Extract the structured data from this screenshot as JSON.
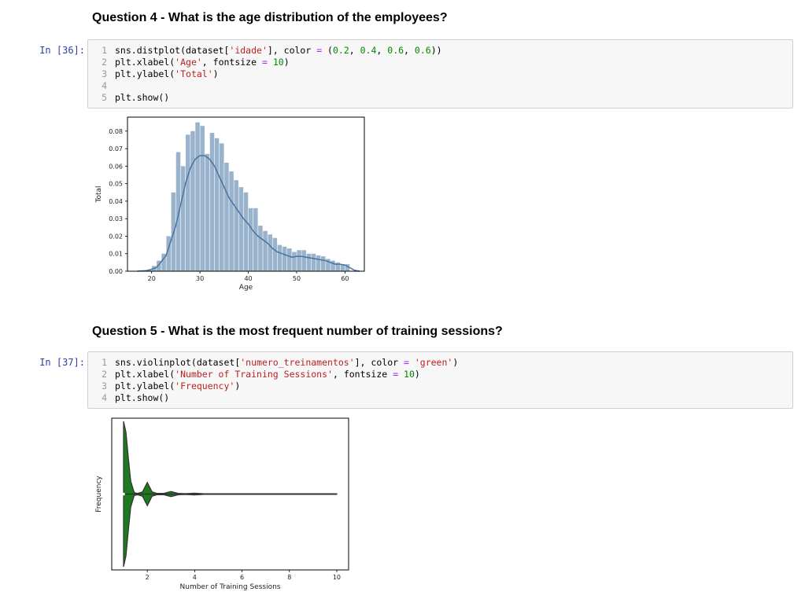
{
  "cells": [
    {
      "heading": "Question 4 - What is the age distribution of the employees?",
      "prompt": "In [36]:",
      "code_lines": [
        {
          "num": "1",
          "text": "sns.distplot(dataset['idade'], color = (0.2, 0.4, 0.6, 0.6))"
        },
        {
          "num": "2",
          "text": "plt.xlabel('Age', fontsize = 10)"
        },
        {
          "num": "3",
          "text": "plt.ylabel('Total')"
        },
        {
          "num": "4",
          "text": ""
        },
        {
          "num": "5",
          "text": "plt.show()"
        }
      ]
    },
    {
      "heading": "Question 5 - What is the most frequent number of training sessions?",
      "prompt": "In [37]:",
      "code_lines": [
        {
          "num": "1",
          "text": "sns.violinplot(dataset['numero_treinamentos'], color = 'green')"
        },
        {
          "num": "2",
          "text": "plt.xlabel('Number of Training Sessions', fontsize = 10)"
        },
        {
          "num": "3",
          "text": "plt.ylabel('Frequency')"
        },
        {
          "num": "4",
          "text": "plt.show()"
        }
      ]
    }
  ],
  "chart_data": [
    {
      "type": "bar",
      "xlabel": "Age",
      "ylabel": "Total",
      "xlim": [
        15,
        64
      ],
      "ylim": [
        0,
        0.088
      ],
      "xticks": [
        20,
        30,
        40,
        50,
        60
      ],
      "yticks": [
        "0.00",
        "0.01",
        "0.02",
        "0.03",
        "0.04",
        "0.05",
        "0.06",
        "0.07",
        "0.08"
      ],
      "bar_color": "#99b3cc",
      "line_color": "#4a73a0",
      "bin_width": 0.9,
      "bars": [
        {
          "x": 18.5,
          "y": 0.0005
        },
        {
          "x": 19.5,
          "y": 0.001
        },
        {
          "x": 20.5,
          "y": 0.003
        },
        {
          "x": 21.5,
          "y": 0.006
        },
        {
          "x": 22.5,
          "y": 0.01
        },
        {
          "x": 23.5,
          "y": 0.02
        },
        {
          "x": 24.5,
          "y": 0.045
        },
        {
          "x": 25.5,
          "y": 0.068
        },
        {
          "x": 26.5,
          "y": 0.06
        },
        {
          "x": 27.5,
          "y": 0.078
        },
        {
          "x": 28.5,
          "y": 0.08
        },
        {
          "x": 29.5,
          "y": 0.085
        },
        {
          "x": 30.5,
          "y": 0.083
        },
        {
          "x": 31.5,
          "y": 0.067
        },
        {
          "x": 32.5,
          "y": 0.079
        },
        {
          "x": 33.5,
          "y": 0.076
        },
        {
          "x": 34.5,
          "y": 0.073
        },
        {
          "x": 35.5,
          "y": 0.062
        },
        {
          "x": 36.5,
          "y": 0.057
        },
        {
          "x": 37.5,
          "y": 0.052
        },
        {
          "x": 38.5,
          "y": 0.048
        },
        {
          "x": 39.5,
          "y": 0.045
        },
        {
          "x": 40.5,
          "y": 0.036
        },
        {
          "x": 41.5,
          "y": 0.036
        },
        {
          "x": 42.5,
          "y": 0.026
        },
        {
          "x": 43.5,
          "y": 0.023
        },
        {
          "x": 44.5,
          "y": 0.021
        },
        {
          "x": 45.5,
          "y": 0.019
        },
        {
          "x": 46.5,
          "y": 0.015
        },
        {
          "x": 47.5,
          "y": 0.014
        },
        {
          "x": 48.5,
          "y": 0.013
        },
        {
          "x": 49.5,
          "y": 0.011
        },
        {
          "x": 50.5,
          "y": 0.012
        },
        {
          "x": 51.5,
          "y": 0.012
        },
        {
          "x": 52.5,
          "y": 0.01
        },
        {
          "x": 53.5,
          "y": 0.01
        },
        {
          "x": 54.5,
          "y": 0.009
        },
        {
          "x": 55.5,
          "y": 0.0085
        },
        {
          "x": 56.5,
          "y": 0.007
        },
        {
          "x": 57.5,
          "y": 0.006
        },
        {
          "x": 58.5,
          "y": 0.005
        },
        {
          "x": 59.5,
          "y": 0.004
        },
        {
          "x": 60.5,
          "y": 0.004
        }
      ],
      "kde": [
        [
          17,
          0.0
        ],
        [
          19,
          0.0003
        ],
        [
          21,
          0.002
        ],
        [
          23,
          0.009
        ],
        [
          25,
          0.026
        ],
        [
          26,
          0.038
        ],
        [
          27,
          0.05
        ],
        [
          28,
          0.059
        ],
        [
          29,
          0.064
        ],
        [
          30,
          0.066
        ],
        [
          31,
          0.066
        ],
        [
          32,
          0.064
        ],
        [
          33,
          0.06
        ],
        [
          34,
          0.054
        ],
        [
          35,
          0.048
        ],
        [
          36,
          0.042
        ],
        [
          37,
          0.038
        ],
        [
          38,
          0.034
        ],
        [
          39,
          0.03
        ],
        [
          40,
          0.027
        ],
        [
          41,
          0.023
        ],
        [
          42,
          0.02
        ],
        [
          43,
          0.018
        ],
        [
          44,
          0.016
        ],
        [
          45,
          0.013
        ],
        [
          46,
          0.011
        ],
        [
          47,
          0.01
        ],
        [
          48,
          0.009
        ],
        [
          49,
          0.008
        ],
        [
          50,
          0.0085
        ],
        [
          51,
          0.0085
        ],
        [
          52,
          0.008
        ],
        [
          53,
          0.0075
        ],
        [
          54,
          0.007
        ],
        [
          55,
          0.0065
        ],
        [
          56,
          0.006
        ],
        [
          57,
          0.005
        ],
        [
          58,
          0.004
        ],
        [
          59,
          0.004
        ],
        [
          60,
          0.0035
        ],
        [
          61,
          0.002
        ],
        [
          62,
          0.0005
        ],
        [
          63,
          0.0
        ]
      ]
    },
    {
      "type": "violin",
      "xlabel": "Number of Training Sessions",
      "ylabel": "Frequency",
      "xlim": [
        0.5,
        10.5
      ],
      "xticks": [
        2,
        4,
        6,
        8,
        10
      ],
      "fill_color": "#1e7a1e",
      "range": [
        1,
        10
      ],
      "median": 1,
      "density": [
        [
          1.0,
          1.0
        ],
        [
          1.1,
          0.85
        ],
        [
          1.2,
          0.5
        ],
        [
          1.3,
          0.18
        ],
        [
          1.45,
          0.02
        ],
        [
          1.6,
          0.01
        ],
        [
          1.8,
          0.03
        ],
        [
          2.0,
          0.16
        ],
        [
          2.2,
          0.03
        ],
        [
          2.4,
          0.01
        ],
        [
          2.7,
          0.01
        ],
        [
          3.0,
          0.035
        ],
        [
          3.3,
          0.01
        ],
        [
          3.6,
          0.005
        ],
        [
          4.0,
          0.012
        ],
        [
          4.4,
          0.004
        ],
        [
          5,
          0.004
        ],
        [
          10,
          0.004
        ]
      ]
    }
  ]
}
